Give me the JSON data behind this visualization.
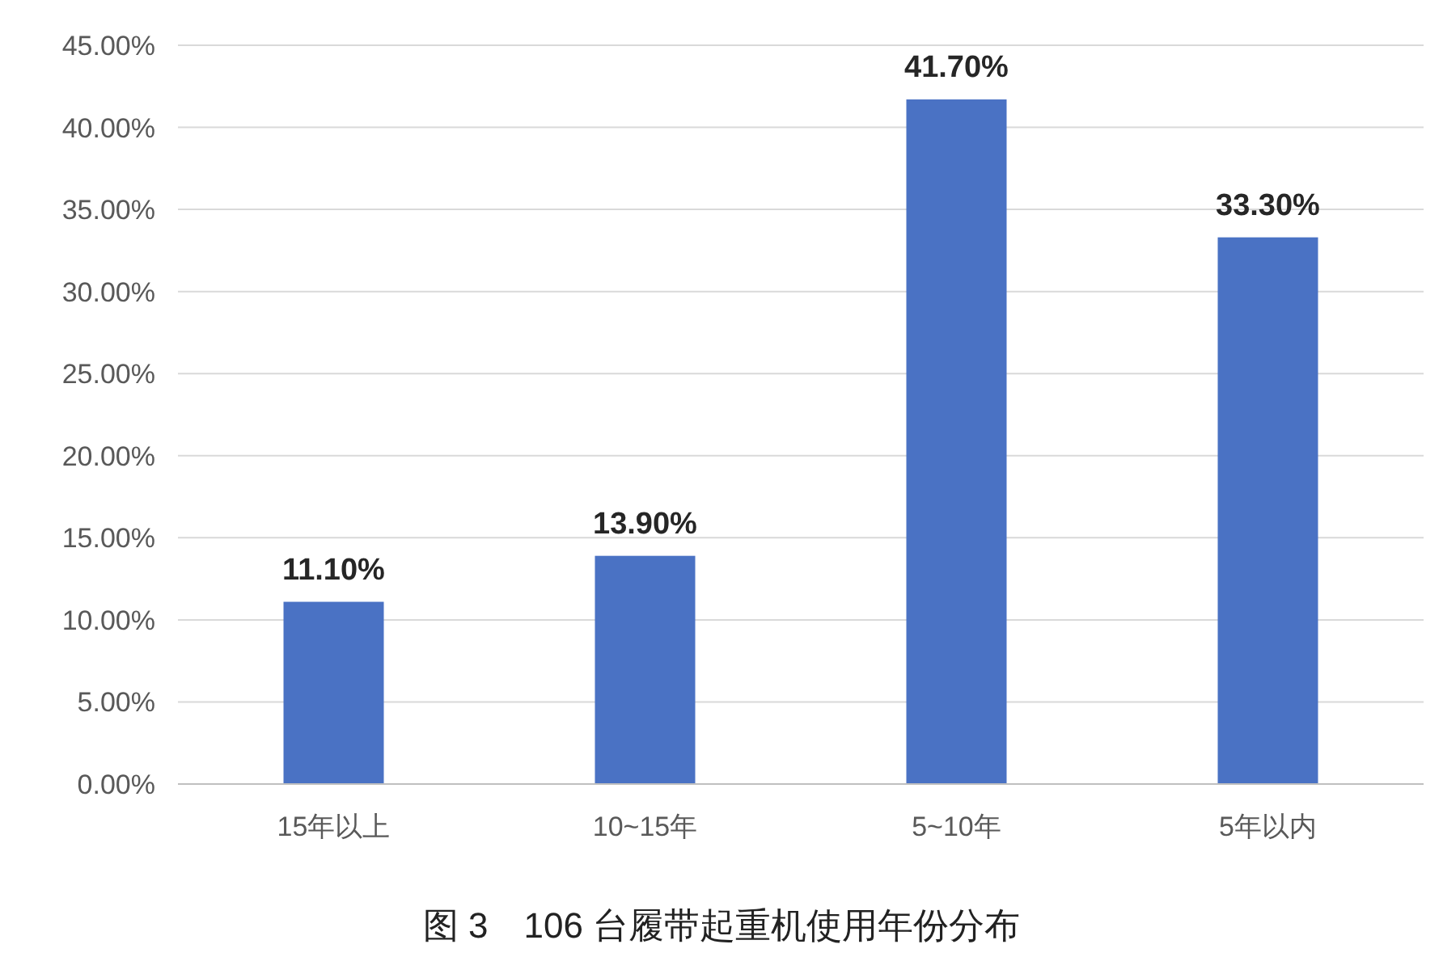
{
  "chart_data": {
    "type": "bar",
    "title": "图 3　106 台履带起重机使用年份分布",
    "categories": [
      "15年以上",
      "10~15年",
      "5~10年",
      "5年以内"
    ],
    "values": [
      11.1,
      13.9,
      41.7,
      33.3
    ],
    "value_labels": [
      "11.10%",
      "13.90%",
      "41.70%",
      "33.30%"
    ],
    "color": "#4a72c4",
    "ylim": [
      0,
      45
    ],
    "yticks": [
      {
        "value": 0,
        "label": "0.00%"
      },
      {
        "value": 5,
        "label": "5.00%"
      },
      {
        "value": 10,
        "label": "10.00%"
      },
      {
        "value": 15,
        "label": "15.00%"
      },
      {
        "value": 20,
        "label": "20.00%"
      },
      {
        "value": 25,
        "label": "25.00%"
      },
      {
        "value": 30,
        "label": "30.00%"
      },
      {
        "value": 35,
        "label": "35.00%"
      },
      {
        "value": 40,
        "label": "40.00%"
      },
      {
        "value": 45,
        "label": "45.00%"
      }
    ],
    "grid": "y"
  }
}
